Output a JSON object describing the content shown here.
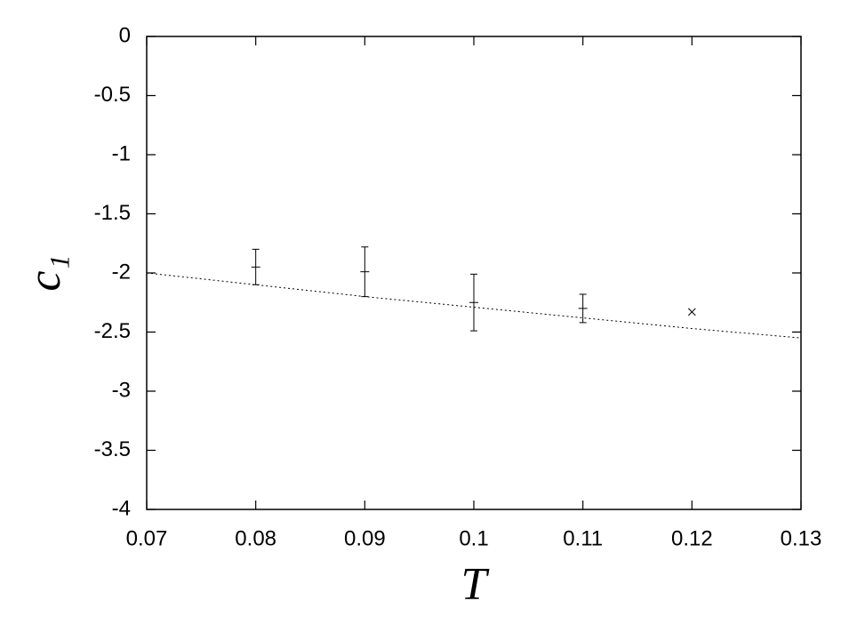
{
  "chart_data": {
    "type": "scatter",
    "xlabel": "T",
    "ylabel": "c₁",
    "xlim": [
      0.07,
      0.13
    ],
    "xticks": [
      0.07,
      0.08,
      0.09,
      0.1,
      0.11,
      0.12,
      0.13
    ],
    "ylim": [
      -4,
      0
    ],
    "yticks": [
      0,
      -0.5,
      -1,
      -1.5,
      -2,
      -2.5,
      -3,
      -3.5,
      -4
    ],
    "color": "#000000",
    "series": [
      {
        "marker": "plus",
        "x": [
          0.08,
          0.09,
          0.1,
          0.11
        ],
        "values": [
          -1.95,
          -1.99,
          -2.25,
          -2.3
        ],
        "errors": [
          0.15,
          0.21,
          0.24,
          0.12
        ]
      },
      {
        "marker": "cross",
        "x": [
          0.12
        ],
        "values": [
          -2.33
        ]
      },
      {
        "marker": "dotted-line",
        "x": [
          0.07,
          0.08,
          0.09,
          0.1,
          0.11,
          0.12,
          0.13
        ],
        "values": [
          -2.0,
          -2.1,
          -2.2,
          -2.29,
          -2.38,
          -2.47,
          -2.55
        ]
      }
    ]
  }
}
